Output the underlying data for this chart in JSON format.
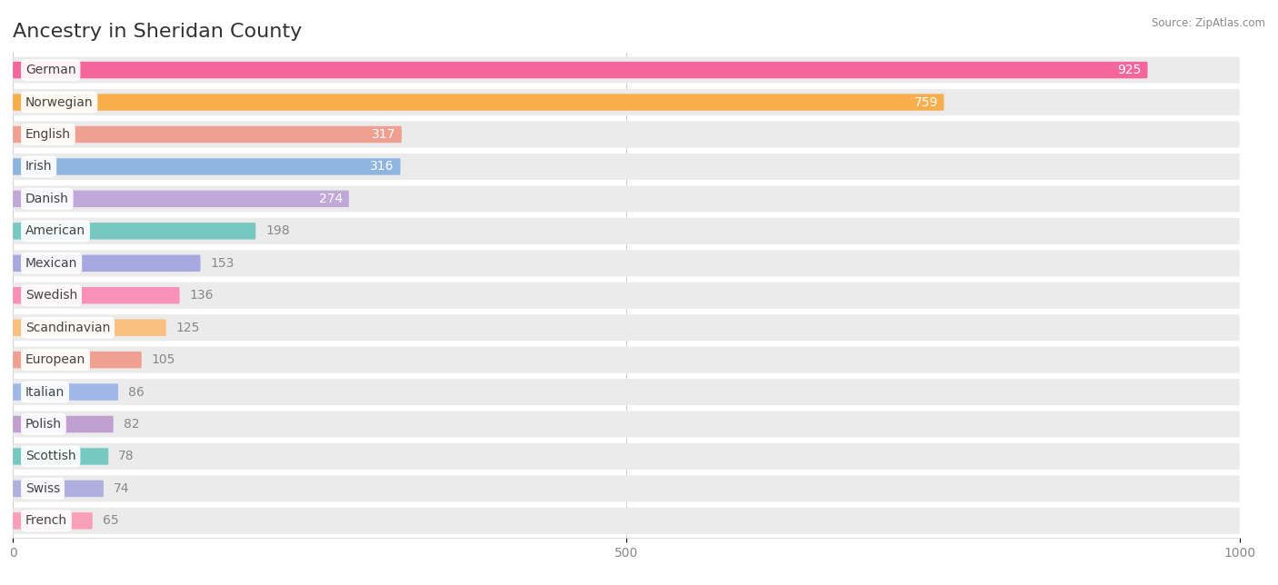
{
  "title": "Ancestry in Sheridan County",
  "source": "Source: ZipAtlas.com",
  "categories": [
    "German",
    "Norwegian",
    "English",
    "Irish",
    "Danish",
    "American",
    "Mexican",
    "Swedish",
    "Scandinavian",
    "European",
    "Italian",
    "Polish",
    "Scottish",
    "Swiss",
    "French"
  ],
  "values": [
    925,
    759,
    317,
    316,
    274,
    198,
    153,
    136,
    125,
    105,
    86,
    82,
    78,
    74,
    65
  ],
  "bar_colors": [
    "#F4679D",
    "#F9AE4E",
    "#F0A090",
    "#8EB4E0",
    "#C0A8D8",
    "#76C8C0",
    "#A8A8E0",
    "#F990B8",
    "#F9C080",
    "#F0A090",
    "#A0B8E8",
    "#C0A0D0",
    "#76C8C0",
    "#B0B0E0",
    "#F9A0B8"
  ],
  "row_bg_color": "#EEEEEE",
  "row_bg_color2": "#F8F8F8",
  "background_color": "#ffffff",
  "value_inside_color": "#ffffff",
  "value_outside_color": "#888888",
  "xlim": [
    0,
    1000
  ],
  "xticks": [
    0,
    500,
    1000
  ],
  "inside_threshold": 250,
  "title_fontsize": 16,
  "tick_fontsize": 10,
  "label_fontsize": 10,
  "value_fontsize": 10
}
